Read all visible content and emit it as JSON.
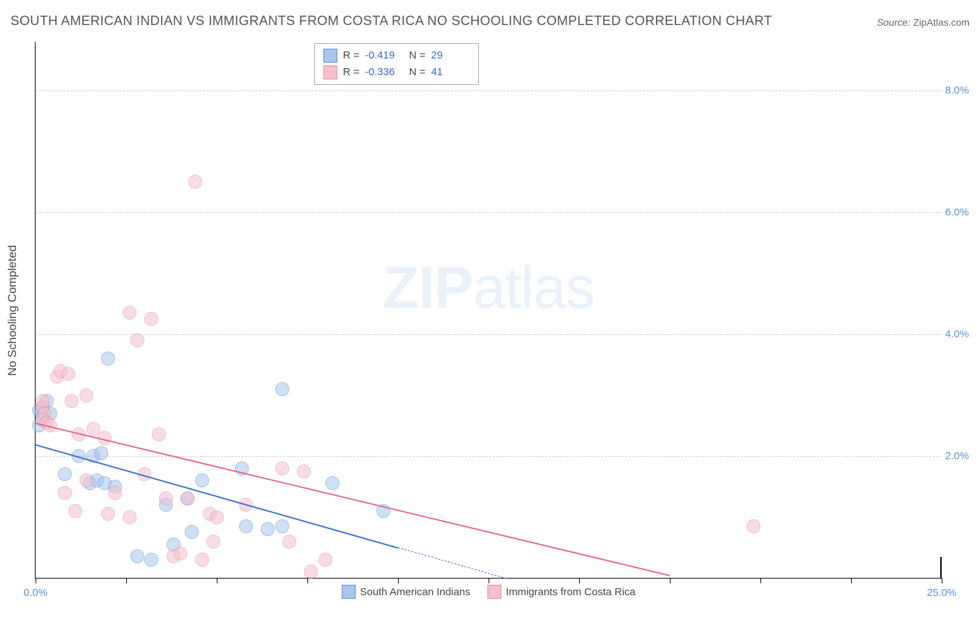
{
  "title": "SOUTH AMERICAN INDIAN VS IMMIGRANTS FROM COSTA RICA NO SCHOOLING COMPLETED CORRELATION CHART",
  "source_label": "Source:",
  "source_value": "ZipAtlas.com",
  "watermark_a": "ZIP",
  "watermark_b": "atlas",
  "chart": {
    "type": "scatter",
    "background_color": "#ffffff",
    "grid_color": "#cccccc",
    "axis_color": "#000000",
    "tick_font_color": "#5b8fd6",
    "ylabel": "No Schooling Completed",
    "xlim": [
      0,
      25
    ],
    "ylim": [
      0,
      8.8
    ],
    "yticks": [
      2.0,
      4.0,
      6.0,
      8.0
    ],
    "ytick_labels": [
      "2.0%",
      "4.0%",
      "6.0%",
      "8.0%"
    ],
    "xticks": [
      0,
      2.5,
      5,
      7.5,
      10,
      12.5,
      15,
      17.5,
      20,
      22.5,
      25
    ],
    "xtick_labels": {
      "0": "0.0%",
      "25": "25.0%"
    },
    "point_radius": 9,
    "point_opacity": 0.55,
    "series": [
      {
        "name": "South American Indians",
        "fill": "#a9c6ec",
        "stroke": "#5b8fd6",
        "R": "-0.419",
        "N": "29",
        "trend": {
          "x1": 0.0,
          "y1": 2.2,
          "x2": 13.0,
          "y2": 0.0,
          "solid_until_x": 10.0,
          "color": "#3f72c9"
        },
        "points": [
          [
            0.1,
            2.75
          ],
          [
            0.2,
            2.65
          ],
          [
            0.2,
            2.8
          ],
          [
            0.3,
            2.9
          ],
          [
            0.4,
            2.7
          ],
          [
            0.1,
            2.5
          ],
          [
            2.0,
            3.6
          ],
          [
            1.2,
            2.0
          ],
          [
            1.6,
            2.0
          ],
          [
            1.8,
            2.05
          ],
          [
            0.8,
            1.7
          ],
          [
            1.5,
            1.55
          ],
          [
            1.7,
            1.6
          ],
          [
            1.9,
            1.55
          ],
          [
            2.2,
            1.5
          ],
          [
            5.7,
            1.8
          ],
          [
            6.8,
            3.1
          ],
          [
            3.6,
            1.2
          ],
          [
            4.2,
            1.3
          ],
          [
            4.6,
            1.6
          ],
          [
            3.8,
            0.55
          ],
          [
            4.3,
            0.75
          ],
          [
            5.8,
            0.85
          ],
          [
            6.4,
            0.8
          ],
          [
            6.8,
            0.85
          ],
          [
            2.8,
            0.35
          ],
          [
            3.2,
            0.3
          ],
          [
            8.2,
            1.55
          ],
          [
            9.6,
            1.1
          ]
        ]
      },
      {
        "name": "Immigrants from Costa Rica",
        "fill": "#f4c0cd",
        "stroke": "#e78aa3",
        "R": "-0.336",
        "N": "41",
        "trend": {
          "x1": 0.0,
          "y1": 2.55,
          "x2": 17.5,
          "y2": 0.05,
          "solid_until_x": 17.5,
          "color": "#e36a8e"
        },
        "points": [
          [
            0.2,
            2.8
          ],
          [
            0.25,
            2.7
          ],
          [
            0.2,
            2.6
          ],
          [
            0.3,
            2.55
          ],
          [
            0.4,
            2.5
          ],
          [
            0.2,
            2.9
          ],
          [
            0.6,
            3.3
          ],
          [
            0.7,
            3.4
          ],
          [
            0.9,
            3.35
          ],
          [
            1.4,
            3.0
          ],
          [
            1.0,
            2.9
          ],
          [
            1.6,
            2.45
          ],
          [
            2.6,
            4.35
          ],
          [
            3.2,
            4.25
          ],
          [
            2.8,
            3.9
          ],
          [
            4.4,
            6.5
          ],
          [
            1.2,
            2.35
          ],
          [
            1.9,
            2.3
          ],
          [
            3.4,
            2.35
          ],
          [
            3.0,
            1.7
          ],
          [
            1.4,
            1.6
          ],
          [
            2.2,
            1.4
          ],
          [
            3.6,
            1.3
          ],
          [
            4.2,
            1.3
          ],
          [
            0.8,
            1.4
          ],
          [
            1.1,
            1.1
          ],
          [
            2.0,
            1.05
          ],
          [
            2.6,
            1.0
          ],
          [
            4.8,
            1.05
          ],
          [
            5.0,
            1.0
          ],
          [
            5.8,
            1.2
          ],
          [
            6.8,
            1.8
          ],
          [
            7.4,
            1.75
          ],
          [
            7.0,
            0.6
          ],
          [
            3.8,
            0.35
          ],
          [
            4.0,
            0.4
          ],
          [
            4.6,
            0.3
          ],
          [
            8.0,
            0.3
          ],
          [
            7.6,
            0.1
          ],
          [
            4.9,
            0.6
          ],
          [
            19.8,
            0.85
          ]
        ]
      }
    ],
    "legend_top": {
      "R_label": "R =",
      "N_label": "N ="
    },
    "legend_bottom_labels": [
      "South American Indians",
      "Immigrants from Costa Rica"
    ]
  }
}
